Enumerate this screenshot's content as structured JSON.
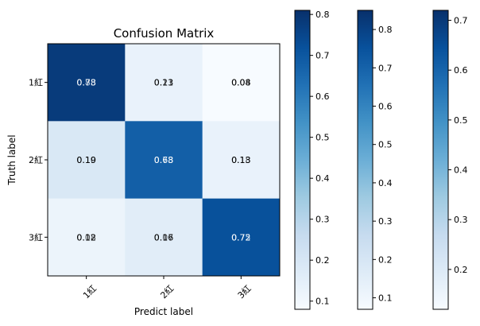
{
  "chart_data": {
    "type": "heatmap",
    "title": "Confusion Matrix",
    "xlabel": "Predict label",
    "ylabel": "Truth label",
    "x_categories": [
      "1紅",
      "2紅",
      "3紅"
    ],
    "y_categories": [
      "1紅",
      "2紅",
      "3紅"
    ],
    "colormap": "Blues",
    "values": [
      [
        0.78,
        0.13,
        0.08
      ],
      [
        0.19,
        0.68,
        0.13
      ],
      [
        0.12,
        0.16,
        0.72
      ]
    ],
    "cell_labels": [
      [
        "0.78",
        "0.13",
        "0.08"
      ],
      [
        "0.19",
        "0.68",
        "0.13"
      ],
      [
        "0.12",
        "0.16",
        "0.72"
      ]
    ],
    "overprinted_labels": [
      [
        "0.83",
        "0.21",
        "0.04"
      ],
      [
        "0.10",
        "0.73",
        "0.18"
      ],
      [
        "0.08",
        "0.07",
        "0.75"
      ]
    ],
    "colorbars": [
      {
        "min": 0.08,
        "max": 0.81,
        "ticks": [
          "0.1",
          "0.2",
          "0.3",
          "0.4",
          "0.5",
          "0.6",
          "0.7",
          "0.8"
        ]
      },
      {
        "min": 0.07,
        "max": 0.85,
        "ticks": [
          "0.1",
          "0.2",
          "0.3",
          "0.4",
          "0.5",
          "0.6",
          "0.7",
          "0.8"
        ]
      },
      {
        "min": 0.12,
        "max": 0.72,
        "ticks": [
          "0.2",
          "0.3",
          "0.4",
          "0.5",
          "0.6",
          "0.7"
        ]
      }
    ]
  }
}
